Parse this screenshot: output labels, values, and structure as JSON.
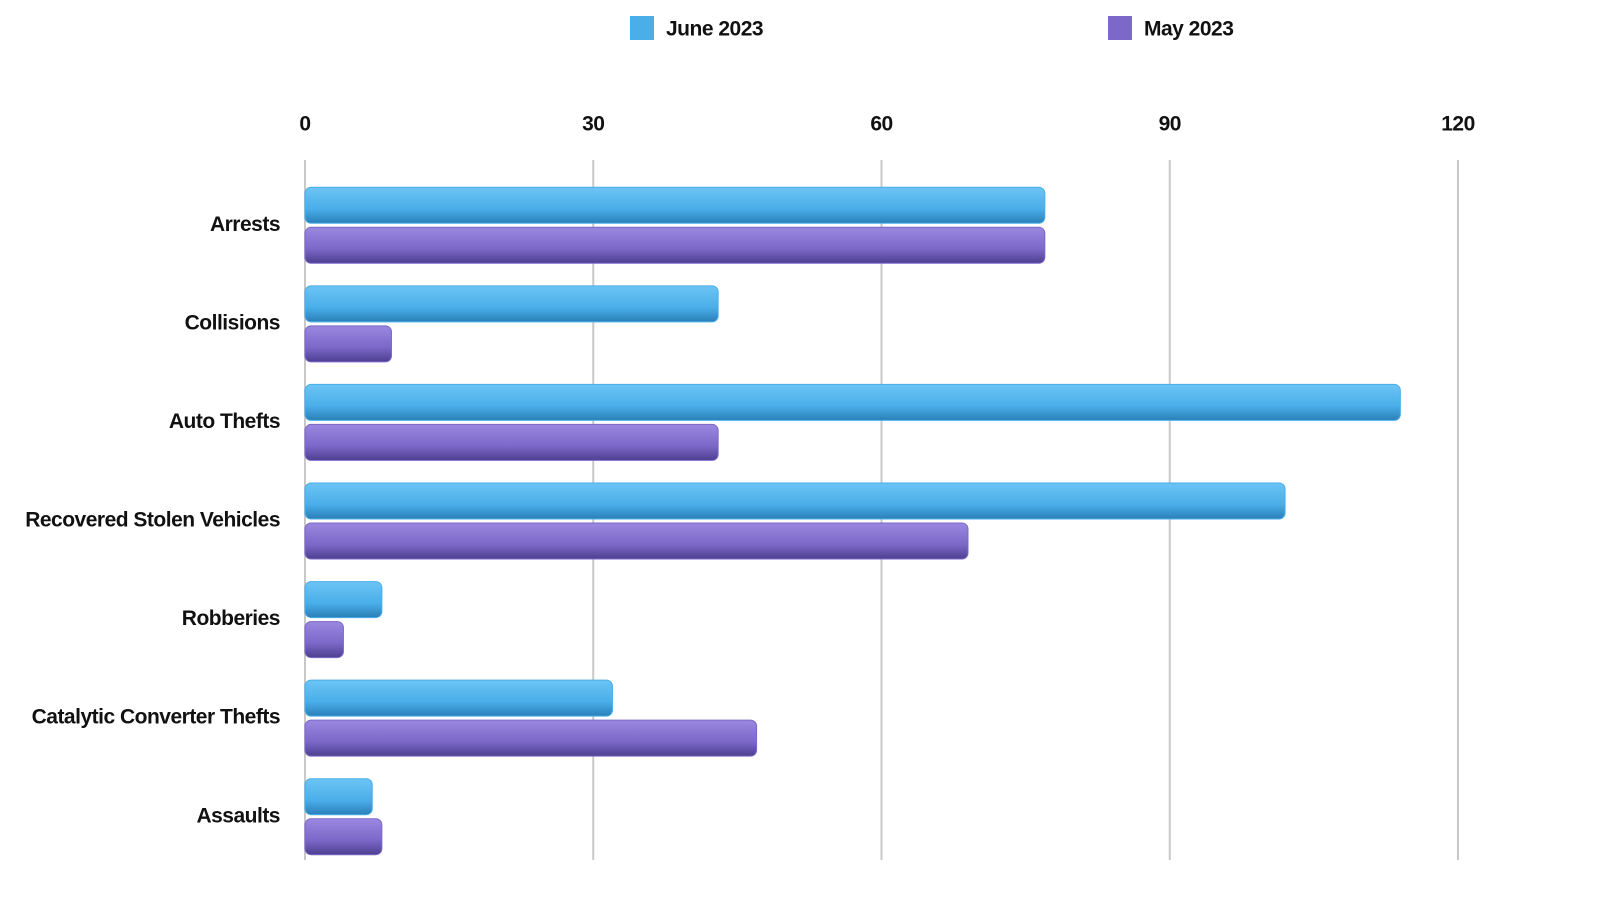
{
  "chart_data": {
    "type": "bar",
    "orientation": "horizontal",
    "categories": [
      "Arrests",
      "Collisions",
      "Auto Thefts",
      "Recovered Stolen Vehicles",
      "Robberies",
      "Catalytic Converter Thefts",
      "Assaults"
    ],
    "series": [
      {
        "name": "June 2023",
        "color": "#4aaee8",
        "values": [
          77,
          43,
          114,
          102,
          8,
          32,
          7
        ]
      },
      {
        "name": "May 2023",
        "color": "#7b68c8",
        "values": [
          77,
          9,
          43,
          69,
          4,
          47,
          8
        ]
      }
    ],
    "xlim": [
      0,
      120
    ],
    "xticks": [
      0,
      30,
      60,
      90,
      120
    ],
    "grid": true,
    "legend": "top"
  }
}
